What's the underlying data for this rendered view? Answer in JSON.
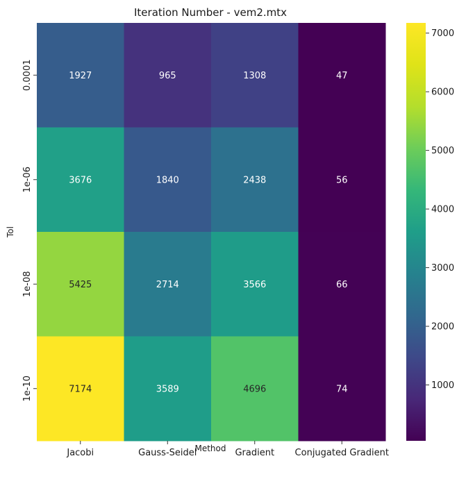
{
  "chart_data": {
    "type": "heatmap",
    "title": "Iteration Number - vem2.mtx",
    "xlabel": "Method",
    "ylabel": "Tol",
    "x_categories": [
      "Jacobi",
      "Gauss-Seidel",
      "Gradient",
      "Conjugated Gradient"
    ],
    "y_categories": [
      "0.0001",
      "1e-06",
      "1e-08",
      "1e-10"
    ],
    "values": [
      [
        1927,
        965,
        1308,
        47
      ],
      [
        3676,
        1840,
        2438,
        56
      ],
      [
        5425,
        2714,
        3566,
        66
      ],
      [
        7174,
        3589,
        4696,
        74
      ]
    ],
    "colormap": "viridis",
    "color_range": [
      47,
      7174
    ],
    "colorbar": {
      "ticks": [
        1000,
        2000,
        3000,
        4000,
        5000,
        6000,
        7000
      ],
      "tick_labels": [
        "1000",
        "2000",
        "3000",
        "4000",
        "5000",
        "6000",
        "7000"
      ]
    },
    "annotation_colors": {
      "light": "#ffffff",
      "dark": "#262626"
    }
  }
}
